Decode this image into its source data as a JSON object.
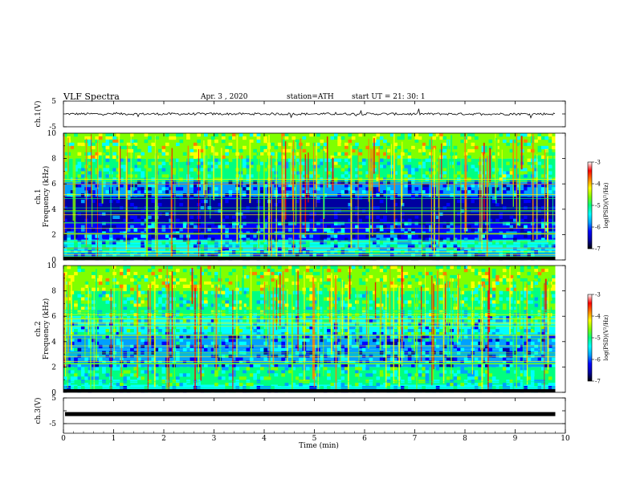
{
  "header": {
    "title": "VLF  Spectra",
    "date": "Apr. 3  , 2020",
    "station": "station=ATH",
    "start_ut": "start  UT  =    21: 30: 1"
  },
  "chart_data": [
    {
      "type": "line",
      "name": "ch1-waveform",
      "ylabel": "ch.1(V)",
      "yticks": [
        "5",
        "-5"
      ],
      "ylim": [
        -5,
        5
      ],
      "xlim": [
        0,
        9.8
      ],
      "baseline": 0,
      "amplitude": "small noisy trace near 0 V with occasional spikes"
    },
    {
      "type": "heatmap",
      "name": "ch1-spectrogram",
      "ylabel_line1": "ch.1",
      "ylabel_line2": "Frequency  (kHz)",
      "yticks": [
        "0",
        "2",
        "4",
        "6",
        "8",
        "10"
      ],
      "ylim": [
        0,
        10
      ],
      "xlim": [
        0,
        9.8
      ],
      "colorbar": {
        "label": "log(PSD)(V²/Hz)",
        "ticks": [
          "-3",
          "-4",
          "-5",
          "-6",
          "-7"
        ],
        "range": [
          -7,
          -3
        ]
      },
      "bands_khz": [
        {
          "from": 0.0,
          "to": 0.6,
          "level": -6.0
        },
        {
          "from": 0.6,
          "to": 1.6,
          "level": -5.6
        },
        {
          "from": 1.6,
          "to": 3.0,
          "level": -6.2
        },
        {
          "from": 3.0,
          "to": 5.0,
          "level": -6.8
        },
        {
          "from": 5.0,
          "to": 6.2,
          "level": -6.1
        },
        {
          "from": 6.2,
          "to": 8.0,
          "level": -5.1
        },
        {
          "from": 8.0,
          "to": 10.0,
          "level": -4.6
        }
      ]
    },
    {
      "type": "heatmap",
      "name": "ch2-spectrogram",
      "ylabel_line1": "ch.2",
      "ylabel_line2": "Frequency  (kHz)",
      "yticks": [
        "0",
        "2",
        "4",
        "6",
        "8",
        "10"
      ],
      "ylim": [
        0,
        10
      ],
      "xlim": [
        0,
        9.8
      ],
      "colorbar": {
        "label": "log(PSD)(V²/Hz)",
        "ticks": [
          "-3",
          "-4",
          "-5",
          "-6",
          "-7"
        ],
        "range": [
          -7,
          -3
        ]
      },
      "bands_khz": [
        {
          "from": 0.0,
          "to": 0.6,
          "level": -5.6
        },
        {
          "from": 0.6,
          "to": 2.0,
          "level": -5.2
        },
        {
          "from": 2.0,
          "to": 3.4,
          "level": -6.0
        },
        {
          "from": 3.4,
          "to": 4.6,
          "level": -5.9
        },
        {
          "from": 4.6,
          "to": 6.0,
          "level": -5.4
        },
        {
          "from": 6.0,
          "to": 8.0,
          "level": -5.0
        },
        {
          "from": 8.0,
          "to": 10.0,
          "level": -4.5
        }
      ]
    },
    {
      "type": "line",
      "name": "ch3-waveform",
      "ylabel": "ch.3(V)",
      "yticks": [
        "5",
        "-5"
      ],
      "ylim": [
        -5,
        5
      ],
      "xlim": [
        0,
        9.8
      ],
      "baseline": -1.3,
      "amplitude": "thick flat trace"
    }
  ],
  "xaxis": {
    "label": "Time  (min)",
    "ticks": [
      "0",
      "1",
      "2",
      "3",
      "4",
      "5",
      "6",
      "7",
      "8",
      "9",
      "10"
    ],
    "range": [
      0,
      10
    ]
  },
  "colormap": [
    "#000000",
    "#0000a0",
    "#0000ff",
    "#00a0ff",
    "#00ffff",
    "#00ff80",
    "#80ff00",
    "#ffff00",
    "#ff8000",
    "#ff0000",
    "#ffffff"
  ]
}
